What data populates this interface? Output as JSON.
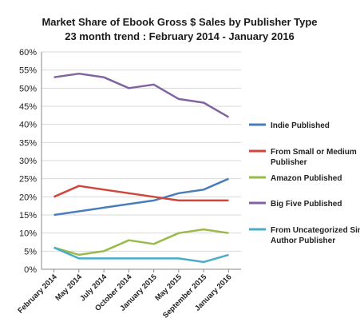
{
  "chart_data": {
    "type": "line",
    "title": "Market Share of Ebook Gross $ Sales by Publisher Type",
    "subtitle": "23 month trend : February 2014 - January 2016",
    "xlabel": "",
    "ylabel": "",
    "categories": [
      "February 2014",
      "May 2014",
      "July 2014",
      "October 2014",
      "January 2015",
      "May 2015",
      "September 2015",
      "January 2016"
    ],
    "ylim": [
      0,
      60
    ],
    "yticks": [
      "0%",
      "5%",
      "10%",
      "15%",
      "20%",
      "25%",
      "30%",
      "35%",
      "40%",
      "45%",
      "50%",
      "55%",
      "60%"
    ],
    "grid": true,
    "legend_position": "right",
    "series": [
      {
        "name": "Indie Published",
        "color": "#4a7ebb",
        "values": [
          15,
          16,
          17,
          18,
          19,
          21,
          22,
          25
        ]
      },
      {
        "name": "From Small or Medium Publisher",
        "color": "#d0453c",
        "values": [
          20,
          23,
          22,
          21,
          20,
          19,
          19,
          19
        ]
      },
      {
        "name": "Amazon Published",
        "color": "#98bb4a",
        "values": [
          6,
          4,
          5,
          8,
          7,
          10,
          11,
          10
        ]
      },
      {
        "name": "Big Five Published",
        "color": "#8064a2",
        "values": [
          53,
          54,
          53,
          50,
          51,
          47,
          46,
          42
        ]
      },
      {
        "name": "From Uncategorized Single Author Publisher",
        "color": "#4bacc6",
        "values": [
          6,
          3,
          3,
          3,
          3,
          3,
          2,
          4
        ]
      }
    ]
  }
}
